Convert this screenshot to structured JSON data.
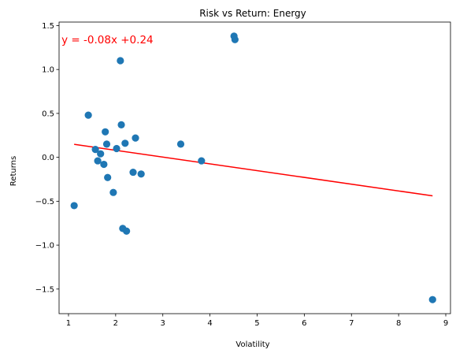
{
  "chart_data": {
    "type": "scatter",
    "title": "Risk vs Return: Energy",
    "xlabel": "Volatility",
    "ylabel": "Returns",
    "xlim": [
      0.8,
      9.1
    ],
    "ylim": [
      -1.78,
      1.54
    ],
    "xticks": [
      1,
      2,
      3,
      4,
      5,
      6,
      7,
      8,
      9
    ],
    "yticks": [
      -1.5,
      -1.0,
      -0.5,
      0.0,
      0.5,
      1.0,
      1.5
    ],
    "ytick_labels": [
      "−1.5",
      "−1.0",
      "−0.5",
      "0.0",
      "0.5",
      "1.0",
      "1.5"
    ],
    "grid": false,
    "point_color": "#1f77b4",
    "points": [
      {
        "x": 1.12,
        "y": -0.55
      },
      {
        "x": 1.42,
        "y": 0.48
      },
      {
        "x": 1.57,
        "y": 0.09
      },
      {
        "x": 1.62,
        "y": -0.04
      },
      {
        "x": 1.68,
        "y": 0.04
      },
      {
        "x": 1.75,
        "y": -0.08
      },
      {
        "x": 1.78,
        "y": 0.29
      },
      {
        "x": 1.81,
        "y": 0.15
      },
      {
        "x": 1.83,
        "y": -0.23
      },
      {
        "x": 1.95,
        "y": -0.4
      },
      {
        "x": 2.02,
        "y": 0.1
      },
      {
        "x": 2.1,
        "y": 1.1
      },
      {
        "x": 2.12,
        "y": 0.37
      },
      {
        "x": 2.15,
        "y": -0.81
      },
      {
        "x": 2.2,
        "y": 0.16
      },
      {
        "x": 2.23,
        "y": -0.84
      },
      {
        "x": 2.37,
        "y": -0.17
      },
      {
        "x": 2.42,
        "y": 0.22
      },
      {
        "x": 2.54,
        "y": -0.19
      },
      {
        "x": 3.38,
        "y": 0.15
      },
      {
        "x": 3.82,
        "y": -0.04
      },
      {
        "x": 4.51,
        "y": 1.38
      },
      {
        "x": 4.53,
        "y": 1.34
      },
      {
        "x": 8.72,
        "y": -1.62
      }
    ],
    "regression": {
      "slope": -0.0772,
      "intercept": 0.2347,
      "x_range": [
        1.12,
        8.72
      ],
      "color": "#ff0000",
      "equation_label": "y = -0.08x +0.24",
      "label_x": 1.12,
      "label_y": 1.36
    }
  }
}
